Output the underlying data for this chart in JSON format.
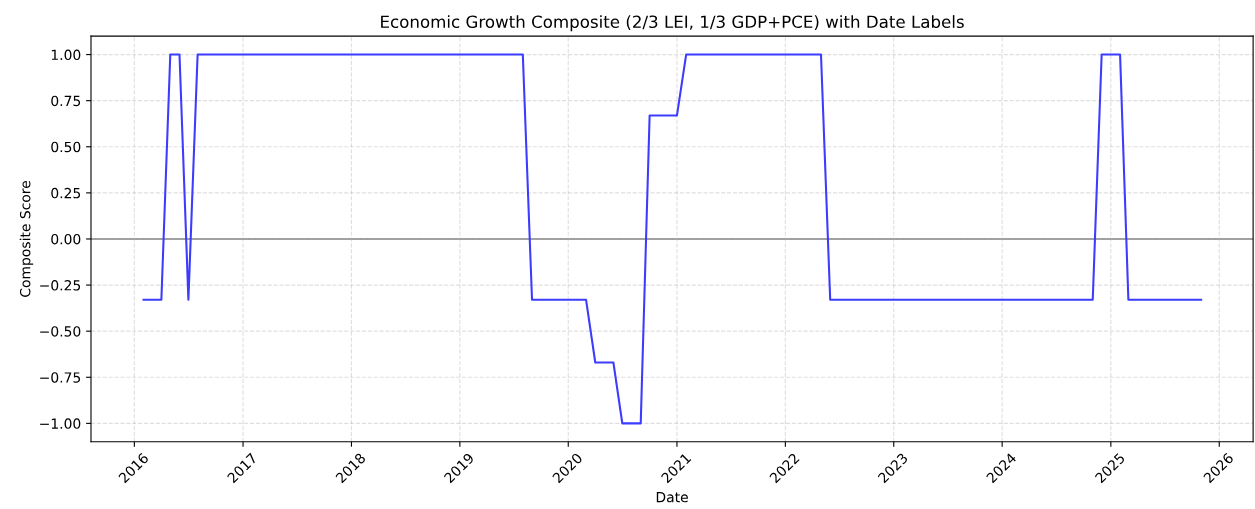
{
  "chart_data": {
    "type": "line",
    "title": "Economic Growth Composite (2/3 LEI, 1/3 GDP+PCE) with Date Labels",
    "xlabel": "Date",
    "ylabel": "Composite Score",
    "series": [
      {
        "color": "#3c3cff",
        "x": [
          "2016-02",
          "2016-04",
          "2016-05",
          "2016-06",
          "2016-07",
          "2016-08",
          "2019-08",
          "2019-09",
          "2020-03",
          "2020-04",
          "2020-06",
          "2020-07",
          "2020-09",
          "2020-10",
          "2021-01",
          "2021-02",
          "2022-05",
          "2022-06",
          "2024-11",
          "2024-12",
          "2025-02",
          "2025-03",
          "2025-11"
        ],
        "values": [
          -0.33,
          -0.33,
          1,
          1,
          -0.33,
          1,
          1,
          -0.33,
          -0.33,
          -0.67,
          -0.67,
          -1,
          -1,
          0.67,
          0.67,
          1,
          1,
          -0.33,
          -0.33,
          1,
          1,
          -0.33,
          -0.33
        ]
      }
    ],
    "xlim": [
      "2015-08-08",
      "2026-04-25"
    ],
    "xticks": [
      "2016",
      "2017",
      "2018",
      "2019",
      "2020",
      "2021",
      "2022",
      "2023",
      "2024",
      "2025",
      "2026"
    ],
    "ylim": [
      -1.1,
      1.1
    ],
    "yticks": [
      {
        "value": -1,
        "label": "−1.00"
      },
      {
        "value": -0.75,
        "label": "−0.75"
      },
      {
        "value": -0.5,
        "label": "−0.50"
      },
      {
        "value": -0.25,
        "label": "−0.25"
      },
      {
        "value": 0,
        "label": "0.00"
      },
      {
        "value": 0.25,
        "label": "0.25"
      },
      {
        "value": 0.5,
        "label": "0.50"
      },
      {
        "value": 0.75,
        "label": "0.75"
      },
      {
        "value": 1,
        "label": "1.00"
      }
    ],
    "ref_lines": [
      {
        "axis": "y",
        "value": 0,
        "color": "#000000",
        "line_style": "solid"
      }
    ],
    "grid": true,
    "marker": "none",
    "line_style": "solid"
  }
}
